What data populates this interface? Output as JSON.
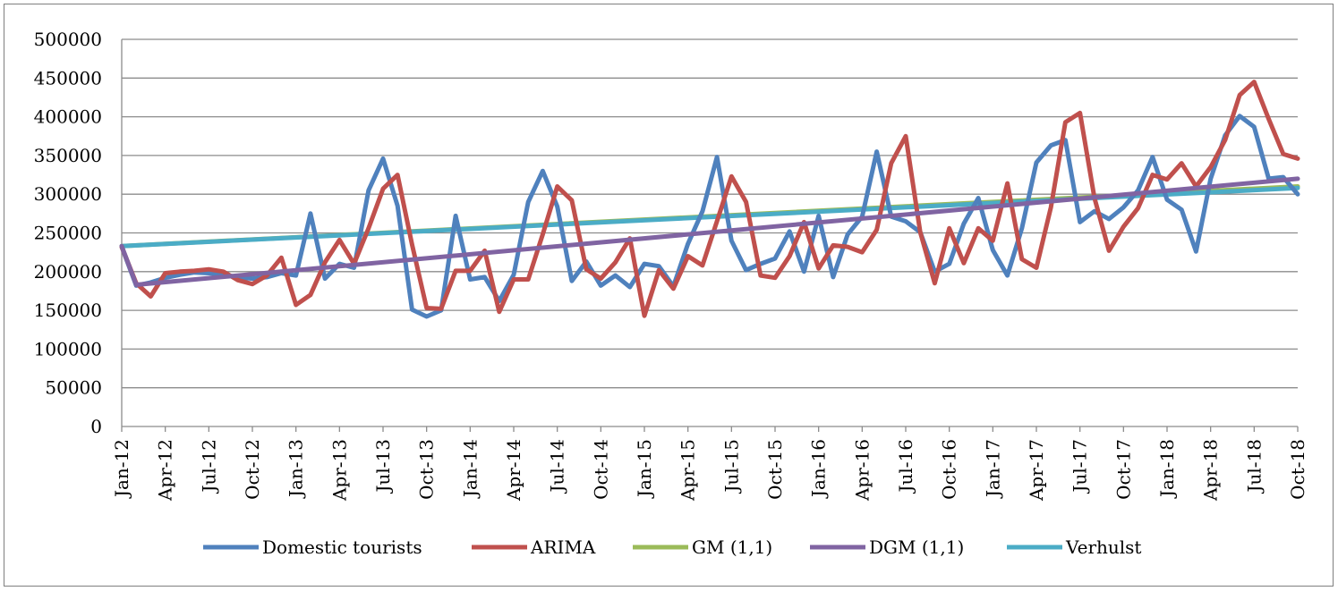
{
  "chart_data": {
    "type": "line",
    "title": "",
    "xlabel": "",
    "ylabel": "",
    "ylim": [
      0,
      500000
    ],
    "y_ticks": [
      0,
      50000,
      100000,
      150000,
      200000,
      250000,
      300000,
      350000,
      400000,
      450000,
      500000
    ],
    "grid": "horizontal",
    "legend_position": "bottom",
    "x_tick_labels": [
      "Jan-12",
      "Apr-12",
      "Jul-12",
      "Oct-12",
      "Jan-13",
      "Apr-13",
      "Jul-13",
      "Oct-13",
      "Jan-14",
      "Apr-14",
      "Jul-14",
      "Oct-14",
      "Jan-15",
      "Apr-15",
      "Jul-15",
      "Oct-15",
      "Jan-16",
      "Apr-16",
      "Jul-16",
      "Oct-16",
      "Jan-17",
      "Apr-17",
      "Jul-17",
      "Oct-17",
      "Jan-18",
      "Apr-18",
      "Jul-18",
      "Oct-18"
    ],
    "series": [
      {
        "name": "Domestic tourists",
        "color": "#4f81bd",
        "values": [
          232000,
          182000,
          186000,
          192000,
          196000,
          199000,
          198000,
          196000,
          193000,
          191000,
          193000,
          198000,
          195000,
          275000,
          191000,
          210000,
          205000,
          305000,
          346000,
          285000,
          151000,
          142000,
          150000,
          272000,
          190000,
          193000,
          162000,
          196000,
          290000,
          330000,
          284000,
          188000,
          213000,
          182000,
          195000,
          180000,
          210000,
          207000,
          181000,
          236000,
          278000,
          348000,
          240000,
          202000,
          210000,
          217000,
          252000,
          200000,
          272000,
          193000,
          248000,
          271000,
          355000,
          271000,
          265000,
          251000,
          200000,
          210000,
          262000,
          295000,
          228000,
          195000,
          256000,
          341000,
          363000,
          370000,
          264000,
          278000,
          268000,
          283000,
          305000,
          348000,
          293000,
          280000,
          226000,
          320000,
          376000,
          401000,
          387000,
          320000,
          322000,
          300000
        ]
      },
      {
        "name": "ARIMA",
        "color": "#c0504d",
        "values": [
          232000,
          185000,
          168000,
          198000,
          200000,
          201000,
          203000,
          200000,
          189000,
          184000,
          195000,
          218000,
          157000,
          170000,
          212000,
          241000,
          210000,
          256000,
          307000,
          325000,
          235000,
          153000,
          152000,
          201000,
          201000,
          227000,
          148000,
          190000,
          190000,
          248000,
          310000,
          292000,
          203000,
          191000,
          212000,
          243000,
          143000,
          202000,
          178000,
          220000,
          208000,
          265000,
          323000,
          290000,
          195000,
          192000,
          220000,
          264000,
          204000,
          234000,
          232000,
          225000,
          254000,
          340000,
          375000,
          251000,
          185000,
          256000,
          211000,
          256000,
          240000,
          314000,
          216000,
          205000,
          283000,
          393000,
          405000,
          295000,
          227000,
          258000,
          282000,
          325000,
          319000,
          340000,
          310000,
          335000,
          370000,
          428000,
          445000,
          397000,
          352000,
          346000
        ]
      },
      {
        "name": "GM (1,1)",
        "color": "#9bbb59",
        "values": [
          233000,
          310000
        ]
      },
      {
        "name": "DGM (1,1)",
        "color": "#8064a2",
        "values": [
          233000,
          183000,
          320000
        ]
      },
      {
        "name": "Verhulst",
        "color": "#4bacc6",
        "values": [
          233000,
          308000
        ]
      }
    ]
  }
}
